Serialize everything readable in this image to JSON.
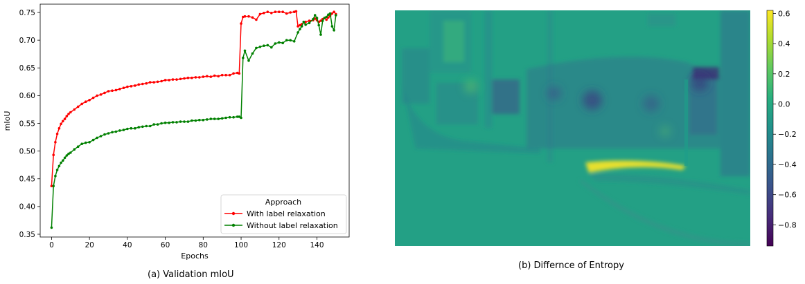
{
  "chart_data": [
    {
      "type": "line",
      "xlabel": "Epochs",
      "ylabel": "mIoU",
      "xlim": [
        -6,
        157
      ],
      "ylim": [
        0.345,
        0.765
      ],
      "xticks": [
        0,
        20,
        40,
        60,
        80,
        100,
        120,
        140
      ],
      "yticks": [
        0.35,
        0.4,
        0.45,
        0.5,
        0.55,
        0.6,
        0.65,
        0.7,
        0.75
      ],
      "grid": false,
      "legend": {
        "title": "Approach",
        "placement": "lower-right"
      },
      "series": [
        {
          "name": "With label relaxation",
          "color": "#ff0000",
          "x": [
            0,
            1,
            2,
            3,
            4,
            5,
            6,
            7,
            8,
            9,
            10,
            12,
            14,
            16,
            18,
            20,
            22,
            24,
            26,
            28,
            30,
            32,
            34,
            36,
            38,
            40,
            42,
            44,
            46,
            48,
            50,
            52,
            54,
            56,
            58,
            60,
            62,
            64,
            66,
            68,
            70,
            72,
            74,
            76,
            78,
            80,
            82,
            84,
            86,
            88,
            90,
            92,
            94,
            96,
            98,
            99,
            100,
            101,
            102,
            104,
            106,
            108,
            110,
            112,
            114,
            116,
            118,
            120,
            122,
            124,
            126,
            128,
            129,
            130,
            131,
            132,
            134,
            136,
            138,
            139,
            140,
            141,
            142,
            143,
            144,
            145,
            146,
            147,
            148,
            149,
            150
          ],
          "values": [
            0.437,
            0.493,
            0.516,
            0.531,
            0.541,
            0.549,
            0.554,
            0.558,
            0.563,
            0.567,
            0.57,
            0.575,
            0.58,
            0.585,
            0.589,
            0.592,
            0.596,
            0.6,
            0.602,
            0.605,
            0.608,
            0.609,
            0.61,
            0.612,
            0.614,
            0.616,
            0.617,
            0.618,
            0.62,
            0.621,
            0.622,
            0.624,
            0.624,
            0.625,
            0.626,
            0.628,
            0.628,
            0.629,
            0.629,
            0.63,
            0.631,
            0.632,
            0.632,
            0.633,
            0.633,
            0.634,
            0.635,
            0.634,
            0.636,
            0.635,
            0.637,
            0.637,
            0.637,
            0.64,
            0.641,
            0.64,
            0.73,
            0.742,
            0.743,
            0.743,
            0.741,
            0.737,
            0.747,
            0.749,
            0.751,
            0.749,
            0.751,
            0.751,
            0.751,
            0.748,
            0.75,
            0.751,
            0.752,
            0.725,
            0.727,
            0.729,
            0.733,
            0.735,
            0.736,
            0.739,
            0.736,
            0.733,
            0.735,
            0.738,
            0.74,
            0.737,
            0.741,
            0.744,
            0.748,
            0.751,
            0.747
          ]
        },
        {
          "name": "Without label relaxation",
          "color": "#008000",
          "x": [
            0,
            1,
            2,
            3,
            4,
            5,
            6,
            7,
            8,
            9,
            10,
            12,
            14,
            16,
            18,
            20,
            22,
            24,
            26,
            28,
            30,
            32,
            34,
            36,
            38,
            40,
            42,
            44,
            46,
            48,
            50,
            52,
            54,
            56,
            58,
            60,
            62,
            64,
            66,
            68,
            70,
            72,
            74,
            76,
            78,
            80,
            82,
            84,
            86,
            88,
            90,
            92,
            94,
            96,
            98,
            99,
            100,
            101,
            102,
            104,
            106,
            108,
            110,
            112,
            114,
            116,
            118,
            120,
            122,
            124,
            126,
            128,
            130,
            131,
            132,
            133,
            134,
            136,
            138,
            139,
            140,
            141,
            142,
            143,
            144,
            145,
            146,
            147,
            148,
            149,
            150
          ],
          "values": [
            0.362,
            0.437,
            0.455,
            0.466,
            0.473,
            0.479,
            0.483,
            0.488,
            0.492,
            0.495,
            0.497,
            0.503,
            0.508,
            0.513,
            0.515,
            0.516,
            0.52,
            0.524,
            0.527,
            0.53,
            0.532,
            0.534,
            0.535,
            0.537,
            0.538,
            0.54,
            0.541,
            0.541,
            0.543,
            0.544,
            0.545,
            0.545,
            0.548,
            0.548,
            0.55,
            0.551,
            0.551,
            0.552,
            0.552,
            0.553,
            0.553,
            0.553,
            0.555,
            0.555,
            0.556,
            0.556,
            0.557,
            0.558,
            0.558,
            0.558,
            0.559,
            0.56,
            0.561,
            0.561,
            0.562,
            0.562,
            0.56,
            0.668,
            0.681,
            0.663,
            0.676,
            0.686,
            0.688,
            0.69,
            0.691,
            0.687,
            0.694,
            0.696,
            0.695,
            0.7,
            0.7,
            0.698,
            0.714,
            0.72,
            0.725,
            0.733,
            0.728,
            0.731,
            0.738,
            0.745,
            0.74,
            0.727,
            0.71,
            0.735,
            0.74,
            0.742,
            0.746,
            0.748,
            0.725,
            0.718,
            0.745
          ]
        }
      ]
    },
    {
      "type": "heatmap",
      "colormap": "viridis",
      "colorbar": {
        "ticks": [
          0.6,
          0.4,
          0.2,
          0.0,
          -0.2,
          -0.4,
          -0.6,
          -0.8
        ],
        "tick_labels": [
          "0.6",
          "0.4",
          "0.2",
          "0.0",
          "−0.2",
          "−0.4",
          "−0.6",
          "−0.8"
        ],
        "vmin": -0.94,
        "vmax": 0.62
      }
    }
  ],
  "captions": {
    "left": "(a) Validation mIoU",
    "right": "(b) Differnce of Entropy"
  }
}
